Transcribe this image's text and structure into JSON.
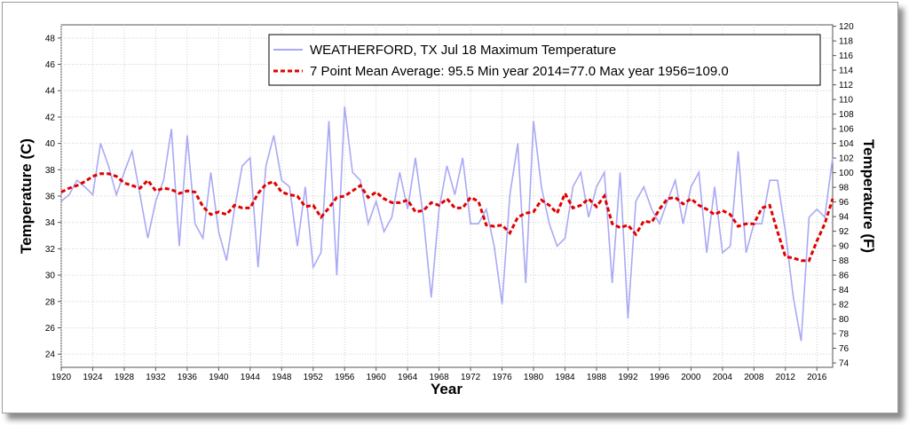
{
  "chart_data": {
    "type": "line",
    "xlabel": "Year",
    "ylabel": "Temperature (C)",
    "y2label": "Temperature (F)",
    "xlim": [
      1920,
      2018
    ],
    "ylim": [
      23,
      49
    ],
    "y2lim": [
      73.4,
      120.2
    ],
    "x_ticks": [
      "1920",
      "1924",
      "1928",
      "1932",
      "1936",
      "1940",
      "1944",
      "1948",
      "1952",
      "1956",
      "1960",
      "1964",
      "1968",
      "1972",
      "1976",
      "1980",
      "1984",
      "1988",
      "1992",
      "1996",
      "2000",
      "2004",
      "2008",
      "2012",
      "2016"
    ],
    "y_ticks": [
      "24",
      "26",
      "28",
      "30",
      "32",
      "34",
      "36",
      "38",
      "40",
      "42",
      "44",
      "46",
      "48"
    ],
    "y2_ticks": [
      "74",
      "76",
      "78",
      "80",
      "82",
      "84",
      "86",
      "88",
      "90",
      "92",
      "94",
      "96",
      "98",
      "100",
      "102",
      "104",
      "106",
      "108",
      "110",
      "112",
      "114",
      "116",
      "118",
      "120"
    ],
    "grid": true,
    "legend_position": "top-right",
    "x": [
      1920,
      1921,
      1922,
      1923,
      1924,
      1925,
      1926,
      1927,
      1928,
      1929,
      1930,
      1931,
      1932,
      1933,
      1934,
      1935,
      1936,
      1937,
      1938,
      1939,
      1940,
      1941,
      1942,
      1943,
      1944,
      1945,
      1946,
      1947,
      1948,
      1949,
      1950,
      1951,
      1952,
      1953,
      1954,
      1955,
      1956,
      1957,
      1958,
      1959,
      1960,
      1961,
      1962,
      1963,
      1964,
      1965,
      1966,
      1967,
      1968,
      1969,
      1970,
      1971,
      1972,
      1973,
      1974,
      1975,
      1976,
      1977,
      1978,
      1979,
      1980,
      1981,
      1982,
      1983,
      1984,
      1985,
      1986,
      1987,
      1988,
      1989,
      1990,
      1991,
      1992,
      1993,
      1994,
      1995,
      1996,
      1997,
      1998,
      1999,
      2000,
      2001,
      2002,
      2003,
      2004,
      2005,
      2006,
      2007,
      2008,
      2009,
      2010,
      2011,
      2012,
      2013,
      2014,
      2015,
      2016,
      2017,
      2018
    ],
    "series": [
      {
        "name": "WEATHERFORD, TX  Jul 18  Maximum Temperature",
        "color": "#a9a9f5",
        "values": [
          35.6,
          36.1,
          37.2,
          36.7,
          36.1,
          40.0,
          38.3,
          36.1,
          37.8,
          39.4,
          36.1,
          32.8,
          35.6,
          37.2,
          41.1,
          32.2,
          40.6,
          33.9,
          32.8,
          37.8,
          33.3,
          31.1,
          35.0,
          38.3,
          38.9,
          30.6,
          38.3,
          40.6,
          37.2,
          36.7,
          32.2,
          36.7,
          30.6,
          31.7,
          41.7,
          30.0,
          42.8,
          37.8,
          37.2,
          33.9,
          35.6,
          33.3,
          34.4,
          37.8,
          35.0,
          38.9,
          34.4,
          28.3,
          35.0,
          38.3,
          36.1,
          38.9,
          33.9,
          33.9,
          35.0,
          32.2,
          27.8,
          36.1,
          40.0,
          29.4,
          41.7,
          36.7,
          33.9,
          32.2,
          32.8,
          36.7,
          37.8,
          34.4,
          36.7,
          37.8,
          29.4,
          37.8,
          26.7,
          35.6,
          36.7,
          35.0,
          33.9,
          35.6,
          37.2,
          33.9,
          36.7,
          37.8,
          31.7,
          36.7,
          31.7,
          32.2,
          39.4,
          31.7,
          33.9,
          33.9,
          37.2,
          37.2,
          33.3,
          28.3,
          25.0,
          34.4,
          35.0,
          34.4,
          38.9
        ]
      },
      {
        "name": "7 Point Mean  Average: 95.5  Min year 2014=77.0  Max year 1956=109.0",
        "color": "#e00000",
        "values": [
          36.3,
          36.6,
          36.8,
          37.1,
          37.5,
          37.7,
          37.7,
          37.5,
          37.0,
          36.8,
          36.6,
          37.2,
          36.4,
          36.6,
          36.5,
          36.2,
          36.4,
          36.3,
          35.2,
          34.6,
          34.8,
          34.6,
          35.3,
          35.1,
          35.1,
          36.2,
          36.9,
          37.1,
          36.3,
          36.1,
          36.0,
          35.2,
          35.3,
          34.4,
          35.1,
          35.9,
          36.0,
          36.4,
          36.8,
          35.9,
          36.3,
          35.8,
          35.5,
          35.5,
          35.7,
          34.8,
          34.9,
          35.5,
          35.3,
          35.8,
          35.1,
          35.1,
          35.9,
          35.6,
          33.8,
          33.7,
          33.8,
          33.2,
          34.4,
          34.7,
          34.8,
          35.7,
          35.3,
          34.7,
          36.2,
          35.1,
          35.3,
          35.8,
          35.2,
          36.0,
          33.9,
          33.6,
          33.8,
          33.1,
          34.1,
          34.0,
          35.0,
          35.8,
          35.9,
          35.4,
          35.8,
          35.3,
          35.0,
          34.6,
          34.9,
          34.6,
          33.7,
          33.9,
          33.9,
          35.1,
          35.3,
          33.3,
          31.4,
          31.3,
          31.1,
          31.1,
          32.6,
          33.9,
          35.8
        ]
      }
    ]
  }
}
